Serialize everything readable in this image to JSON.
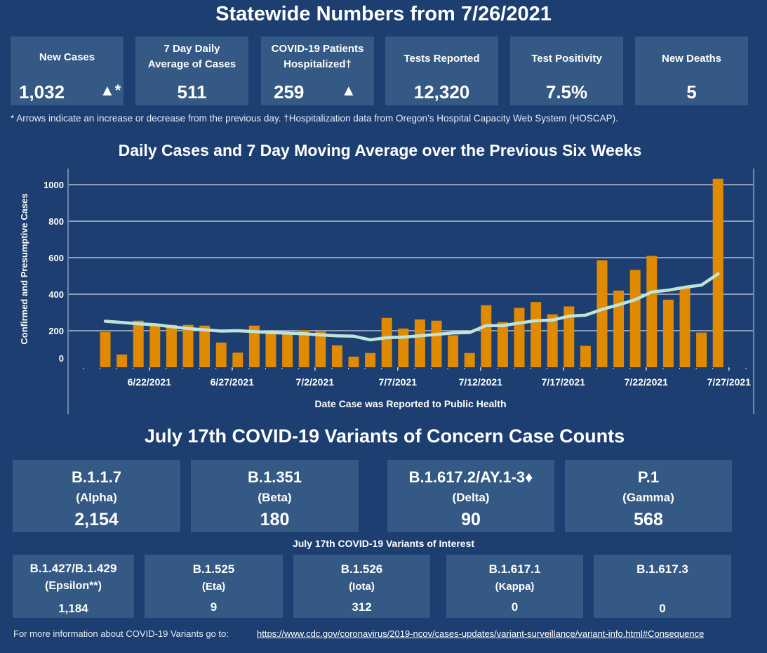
{
  "header": {
    "title": "Statewide Numbers from 7/26/2021"
  },
  "stat_cards": [
    {
      "label": "New Cases",
      "value": "1,032",
      "trend": "up",
      "trend_glyph": "▲*"
    },
    {
      "label": "7 Day Daily Average of Cases",
      "value": "511",
      "trend": null
    },
    {
      "label": "COVID-19 Patients Hospitalized†",
      "value": "259",
      "trend": "up",
      "trend_glyph": "▲"
    },
    {
      "label": "Tests Reported",
      "value": "12,320",
      "trend": null
    },
    {
      "label": "Test Positivity",
      "value": "7.5%",
      "trend": null
    },
    {
      "label": "New Deaths",
      "value": "5",
      "trend": null
    }
  ],
  "footnote": "* Arrows indicate an increase or decrease from the previous day. †Hospitalization data from Oregon’s Hospital Capacity Web System (HOSCAP).",
  "colors": {
    "background": "#1c3e70",
    "card": "#345984",
    "bar": "#df8a00",
    "line": "#bfe3d6",
    "grid": "#ffffff"
  },
  "chart_data": {
    "type": "bar",
    "title": "Daily Cases and 7 Day Moving Average over the Previous Six Weeks",
    "xlabel": "Date Case was Reported to Public Health",
    "ylabel": "Confirmed and Presumptive Cases",
    "ylim": [
      0,
      1000
    ],
    "yticks": [
      0,
      200,
      400,
      600,
      800,
      1000
    ],
    "grid": true,
    "xtick_labels": [
      "6/22/2021",
      "6/27/2021",
      "7/2/2021",
      "7/7/2021",
      "7/12/2021",
      "7/17/2021",
      "7/22/2021",
      "7/27/2021"
    ],
    "categories": [
      "6/19",
      "6/20",
      "6/21",
      "6/22",
      "6/23",
      "6/24",
      "6/25",
      "6/26",
      "6/27",
      "6/28",
      "6/29",
      "6/30",
      "7/1",
      "7/2",
      "7/3",
      "7/4",
      "7/5",
      "7/6",
      "7/7",
      "7/8",
      "7/9",
      "7/10",
      "7/11",
      "7/12",
      "7/13",
      "7/14",
      "7/15",
      "7/16",
      "7/17",
      "7/18",
      "7/19",
      "7/20",
      "7/21",
      "7/22",
      "7/23",
      "7/24",
      "7/25",
      "7/26"
    ],
    "series": [
      {
        "name": "Daily Cases",
        "type": "bar",
        "values": [
          193,
          70,
          255,
          232,
          232,
          232,
          228,
          135,
          80,
          228,
          195,
          185,
          203,
          195,
          120,
          58,
          78,
          270,
          212,
          262,
          255,
          175,
          78,
          340,
          247,
          325,
          357,
          290,
          333,
          117,
          586,
          420,
          533,
          610,
          370,
          438,
          190,
          1032
        ]
      },
      {
        "name": "7 Day Moving Average",
        "type": "line",
        "values": [
          252,
          245,
          238,
          233,
          222,
          212,
          205,
          198,
          200,
          195,
          190,
          187,
          183,
          177,
          172,
          170,
          150,
          162,
          165,
          172,
          180,
          188,
          190,
          228,
          228,
          242,
          255,
          258,
          280,
          285,
          317,
          342,
          370,
          412,
          422,
          438,
          450,
          511
        ]
      }
    ]
  },
  "variants_of_concern": {
    "title": "July 17th  COVID-19 Variants of Concern Case Counts",
    "items": [
      {
        "name": "B.1.1.7",
        "greek": "(Alpha)",
        "count": "2,154"
      },
      {
        "name": "B.1.351",
        "greek": "(Beta)",
        "count": "180"
      },
      {
        "name": "B.1.617.2/AY.1-3♦",
        "greek": "(Delta)",
        "count": "90"
      },
      {
        "name": "P.1",
        "greek": "(Gamma)",
        "count": "568"
      }
    ]
  },
  "variants_of_interest": {
    "title": "July 17th COVID-19 Variants of Interest",
    "items": [
      {
        "name": "B.1.427/B.1.429",
        "greek": "(Epsilon**)",
        "count": "1,184"
      },
      {
        "name": "B.1.525",
        "greek": "(Eta)",
        "count": "9"
      },
      {
        "name": "B.1.526",
        "greek": "(Iota)",
        "count": "312"
      },
      {
        "name": "B.1.617.1",
        "greek": "(Kappa)",
        "count": "0"
      },
      {
        "name": "B.1.617.3",
        "greek": "",
        "count": "0"
      }
    ]
  },
  "footer": {
    "text": "For more information about COVID-19 Variants go to:",
    "link": "https://www.cdc.gov/coronavirus/2019-ncov/cases-updates/variant-surveillance/variant-info.html#Consequence"
  }
}
